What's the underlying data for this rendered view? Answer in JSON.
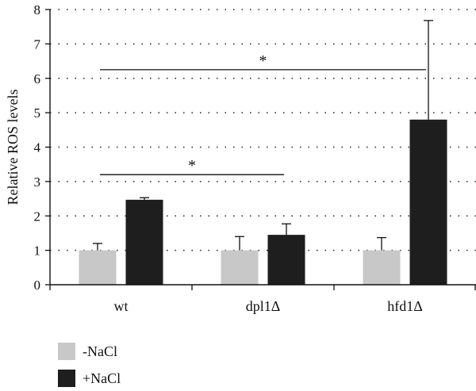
{
  "chart_data": {
    "type": "bar",
    "ylabel": "Relative ROS levels",
    "xlabel": "",
    "title": "",
    "ylim": [
      0,
      8
    ],
    "yticks": [
      0,
      1,
      2,
      3,
      4,
      5,
      6,
      7,
      8
    ],
    "grid": "horizontal-dotted",
    "categories": [
      "wt",
      "dpl1Δ",
      "hfd1Δ"
    ],
    "series": [
      {
        "name": "-NaCl",
        "color": "#c8c8c8",
        "values": [
          1.0,
          1.0,
          1.0
        ],
        "errors": [
          0.2,
          0.4,
          0.37
        ]
      },
      {
        "name": "+NaCl",
        "color": "#1e1e1e",
        "values": [
          2.47,
          1.45,
          4.8
        ],
        "errors": [
          0.06,
          0.32,
          2.88
        ]
      }
    ],
    "legend_position": "bottom-left",
    "significance": [
      {
        "label": "*",
        "from": "wt",
        "to": "dpl1Δ",
        "y": 3.2
      },
      {
        "label": "*",
        "from": "wt",
        "to": "hfd1Δ",
        "y": 6.25
      }
    ]
  }
}
